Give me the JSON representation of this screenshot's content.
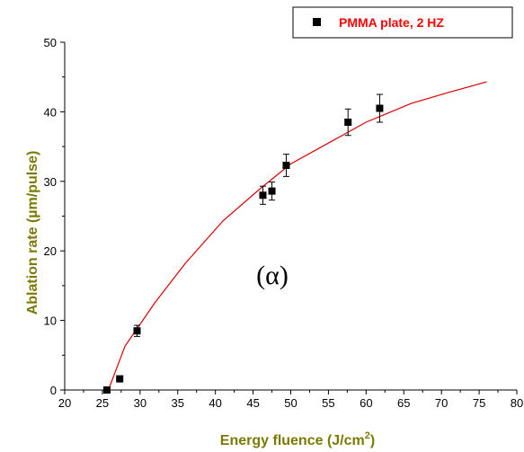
{
  "chart_data": {
    "type": "scatter",
    "xlabel": "Energy fluence (J/cm",
    "xlabel_superscript": "2",
    "xlabel_suffix": ")",
    "ylabel": "Ablation rate (µm/pulse)",
    "xlim": [
      20,
      80
    ],
    "ylim": [
      0,
      50
    ],
    "x_ticks": [
      "20",
      "25",
      "30",
      "35",
      "40",
      "45",
      "50",
      "55",
      "60",
      "65",
      "70",
      "75",
      "80"
    ],
    "y_ticks": [
      "0",
      "10",
      "20",
      "30",
      "40",
      "50"
    ],
    "annotation": "(α)",
    "legend_position": "top-right",
    "grid": false,
    "series": [
      {
        "name": "PMMA plate, 2 HZ",
        "marker": "square",
        "x": [
          25.6,
          27.3,
          29.6,
          46.3,
          47.5,
          49.4,
          57.6,
          61.8
        ],
        "y": [
          0.0,
          1.6,
          8.5,
          28.0,
          28.6,
          32.3,
          38.5,
          40.5
        ],
        "yerr": [
          0.0,
          0.3,
          0.8,
          1.3,
          1.3,
          1.6,
          1.9,
          2.0
        ]
      }
    ],
    "fit_curve": {
      "color": "#dd0000",
      "x": [
        25.8,
        28,
        32,
        36,
        41,
        46,
        50,
        55,
        60,
        66,
        71,
        76
      ],
      "y": [
        0.0,
        6.3,
        12.6,
        18.2,
        24.3,
        29.0,
        32.5,
        35.5,
        38.5,
        41.2,
        42.8,
        44.3
      ]
    },
    "colors": {
      "axis_title": "#7a7a00",
      "legend_text": "#ff0000",
      "marker": "#000000",
      "axes": "#000000"
    }
  }
}
